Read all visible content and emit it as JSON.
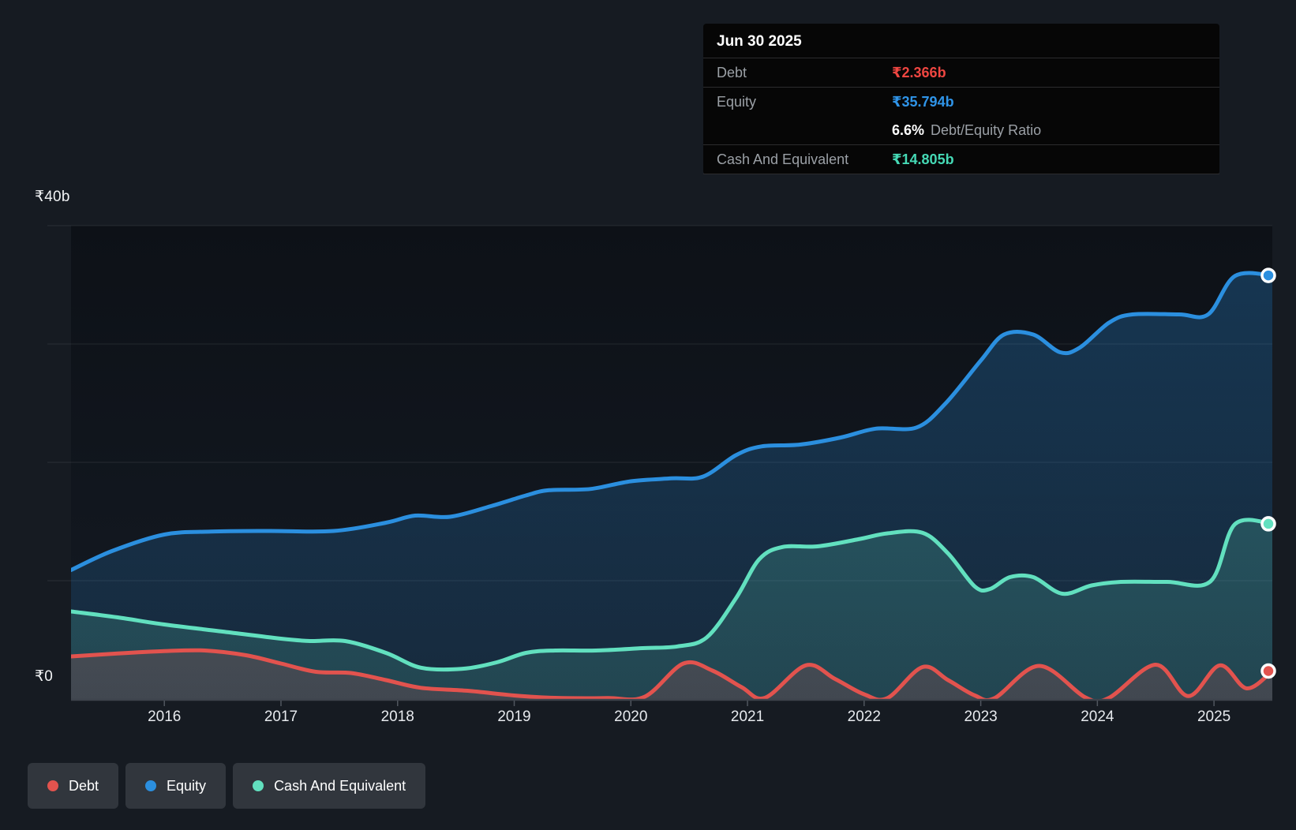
{
  "page": {
    "background": "#161b22"
  },
  "tooltip": {
    "title": "Jun 30 2025",
    "rows": [
      {
        "label": "Debt",
        "value": "₹2.366b",
        "color": "#ef4641"
      },
      {
        "label": "Equity",
        "value": "₹35.794b",
        "color": "#2f94e8"
      }
    ],
    "ratio_row": {
      "value": "6.6%",
      "label": "Debt/Equity Ratio"
    },
    "cash_row": {
      "label": "Cash And Equivalent",
      "value": "₹14.805b",
      "color": "#45d9b5"
    }
  },
  "legend": {
    "items": [
      {
        "label": "Debt",
        "color": "#e2534e"
      },
      {
        "label": "Equity",
        "color": "#2b8fdf"
      },
      {
        "label": "Cash And Equivalent",
        "color": "#62e0bf"
      }
    ]
  },
  "chart_data": {
    "type": "area",
    "unit": "₹ billions",
    "x_domain": [
      2015.2,
      2025.5
    ],
    "y_domain": [
      0,
      40
    ],
    "x_ticks": [
      2016,
      2017,
      2018,
      2019,
      2020,
      2021,
      2022,
      2023,
      2024,
      2025
    ],
    "gridline_values": [
      40,
      30,
      20,
      10
    ],
    "y_axis_labels": [
      {
        "text": "₹40b",
        "value": 40
      },
      {
        "text": "₹0",
        "value": 0
      }
    ],
    "legend_position": "bottom-left",
    "series": [
      {
        "name": "Equity",
        "color": "#2b8fdf",
        "points": [
          [
            2015.2,
            10.9
          ],
          [
            2015.55,
            12.5
          ],
          [
            2016.0,
            13.9
          ],
          [
            2016.4,
            14.15
          ],
          [
            2016.9,
            14.2
          ],
          [
            2017.45,
            14.2
          ],
          [
            2017.9,
            14.9
          ],
          [
            2018.15,
            15.5
          ],
          [
            2018.45,
            15.4
          ],
          [
            2018.8,
            16.3
          ],
          [
            2019.1,
            17.2
          ],
          [
            2019.3,
            17.65
          ],
          [
            2019.65,
            17.75
          ],
          [
            2020.0,
            18.4
          ],
          [
            2020.35,
            18.65
          ],
          [
            2020.62,
            18.8
          ],
          [
            2020.9,
            20.6
          ],
          [
            2021.12,
            21.35
          ],
          [
            2021.45,
            21.5
          ],
          [
            2021.8,
            22.1
          ],
          [
            2022.1,
            22.85
          ],
          [
            2022.45,
            22.95
          ],
          [
            2022.7,
            25.0
          ],
          [
            2023.0,
            28.6
          ],
          [
            2023.2,
            30.8
          ],
          [
            2023.45,
            30.8
          ],
          [
            2023.68,
            29.3
          ],
          [
            2023.85,
            29.7
          ],
          [
            2024.1,
            31.8
          ],
          [
            2024.3,
            32.5
          ],
          [
            2024.7,
            32.5
          ],
          [
            2024.95,
            32.5
          ],
          [
            2025.18,
            35.75
          ],
          [
            2025.5,
            35.794
          ]
        ]
      },
      {
        "name": "Cash And Equivalent",
        "color": "#62e0bf",
        "points": [
          [
            2015.2,
            7.4
          ],
          [
            2015.6,
            6.9
          ],
          [
            2016.0,
            6.3
          ],
          [
            2016.5,
            5.7
          ],
          [
            2017.0,
            5.1
          ],
          [
            2017.25,
            4.9
          ],
          [
            2017.55,
            4.9
          ],
          [
            2017.9,
            3.9
          ],
          [
            2018.2,
            2.65
          ],
          [
            2018.55,
            2.55
          ],
          [
            2018.85,
            3.1
          ],
          [
            2019.1,
            3.9
          ],
          [
            2019.35,
            4.1
          ],
          [
            2019.7,
            4.1
          ],
          [
            2020.1,
            4.3
          ],
          [
            2020.4,
            4.45
          ],
          [
            2020.65,
            5.2
          ],
          [
            2020.9,
            8.5
          ],
          [
            2021.1,
            11.8
          ],
          [
            2021.3,
            12.85
          ],
          [
            2021.6,
            12.9
          ],
          [
            2021.95,
            13.5
          ],
          [
            2022.2,
            14.0
          ],
          [
            2022.5,
            14.05
          ],
          [
            2022.72,
            12.3
          ],
          [
            2022.95,
            9.5
          ],
          [
            2023.08,
            9.3
          ],
          [
            2023.25,
            10.3
          ],
          [
            2023.45,
            10.3
          ],
          [
            2023.7,
            8.9
          ],
          [
            2023.95,
            9.6
          ],
          [
            2024.2,
            9.9
          ],
          [
            2024.6,
            9.9
          ],
          [
            2024.97,
            9.95
          ],
          [
            2025.18,
            14.78
          ],
          [
            2025.5,
            14.805
          ]
        ]
      },
      {
        "name": "Debt",
        "color": "#e2534e",
        "points": [
          [
            2015.2,
            3.6
          ],
          [
            2015.6,
            3.85
          ],
          [
            2016.0,
            4.05
          ],
          [
            2016.35,
            4.1
          ],
          [
            2016.7,
            3.7
          ],
          [
            2017.0,
            3.0
          ],
          [
            2017.3,
            2.3
          ],
          [
            2017.6,
            2.2
          ],
          [
            2017.9,
            1.6
          ],
          [
            2018.2,
            0.95
          ],
          [
            2018.6,
            0.7
          ],
          [
            2019.0,
            0.3
          ],
          [
            2019.35,
            0.1
          ],
          [
            2019.8,
            0.08
          ],
          [
            2020.12,
            0.2
          ],
          [
            2020.45,
            3.0
          ],
          [
            2020.7,
            2.4
          ],
          [
            2020.95,
            1.0
          ],
          [
            2021.15,
            0.1
          ],
          [
            2021.5,
            2.85
          ],
          [
            2021.75,
            1.7
          ],
          [
            2022.0,
            0.4
          ],
          [
            2022.2,
            0.08
          ],
          [
            2022.5,
            2.7
          ],
          [
            2022.72,
            1.6
          ],
          [
            2022.95,
            0.3
          ],
          [
            2023.12,
            0.08
          ],
          [
            2023.5,
            2.8
          ],
          [
            2023.9,
            0.12
          ],
          [
            2024.1,
            0.1
          ],
          [
            2024.5,
            2.9
          ],
          [
            2024.78,
            0.25
          ],
          [
            2025.05,
            2.85
          ],
          [
            2025.28,
            0.9
          ],
          [
            2025.5,
            2.366
          ]
        ]
      }
    ],
    "end_values": {
      "Debt": 2.366,
      "Equity": 35.794,
      "Cash And Equivalent": 14.805
    }
  }
}
